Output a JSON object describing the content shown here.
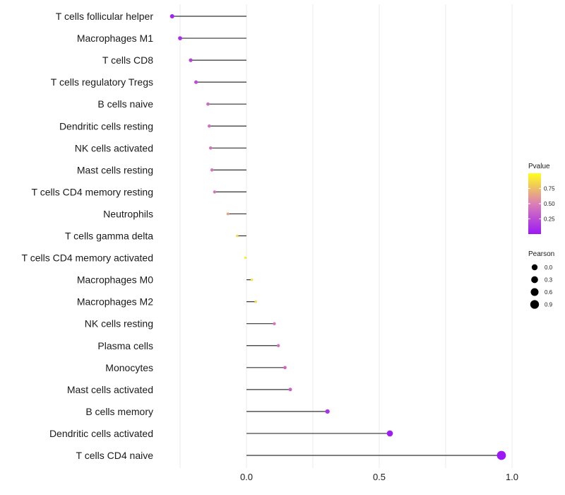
{
  "chart_data": {
    "type": "lollipop",
    "title": "",
    "xlabel": "",
    "ylabel": "",
    "xlim": [
      -0.28,
      1.0
    ],
    "x_ticks": [
      0.0,
      0.5,
      1.0
    ],
    "x_tick_labels": [
      "0.0",
      "0.5",
      "1.0"
    ],
    "grid": true,
    "categories": [
      "T cells follicular helper",
      "Macrophages M1",
      "T cells CD8",
      "T cells regulatory  Tregs",
      "B cells naive",
      "Dendritic cells resting",
      "NK cells activated",
      "Mast cells resting",
      "T cells CD4 memory resting",
      "Neutrophils",
      "T cells gamma delta",
      "T cells CD4 memory activated",
      "Macrophages M0",
      "Macrophages M2",
      "NK cells resting",
      "Plasma cells",
      "Monocytes",
      "Mast cells activated",
      "B cells memory",
      "Dendritic cells activated",
      "T cells CD4 naive"
    ],
    "pearson": [
      -0.28,
      -0.25,
      -0.21,
      -0.19,
      -0.145,
      -0.14,
      -0.135,
      -0.13,
      -0.12,
      -0.07,
      -0.035,
      -0.005,
      0.02,
      0.035,
      0.105,
      0.12,
      0.145,
      0.165,
      0.305,
      0.54,
      0.96
    ],
    "pvalue": [
      0.05,
      0.1,
      0.2,
      0.25,
      0.4,
      0.42,
      0.43,
      0.44,
      0.45,
      0.65,
      0.85,
      0.98,
      0.9,
      0.85,
      0.45,
      0.42,
      0.38,
      0.35,
      0.12,
      0.02,
      0.0
    ],
    "legend_pvalue": {
      "title": "Pvalue",
      "ticks": [
        0.25,
        0.5,
        0.75
      ],
      "tick_labels": [
        "0.25",
        "0.50",
        "0.75"
      ],
      "range": [
        0.0,
        1.0
      ],
      "color_low": "#9c19f5",
      "color_high": "#ffff19"
    },
    "legend_pearson": {
      "title": "Pearson",
      "values": [
        0.0,
        0.3,
        0.6,
        0.9
      ],
      "labels": [
        "0.0",
        "0.3",
        "0.6",
        "0.9"
      ]
    },
    "legend_placement": "right"
  },
  "colors": {
    "background": "#ffffff",
    "grid": "#ebebeb",
    "stem": "#333333",
    "text": "#1a1a1a"
  }
}
